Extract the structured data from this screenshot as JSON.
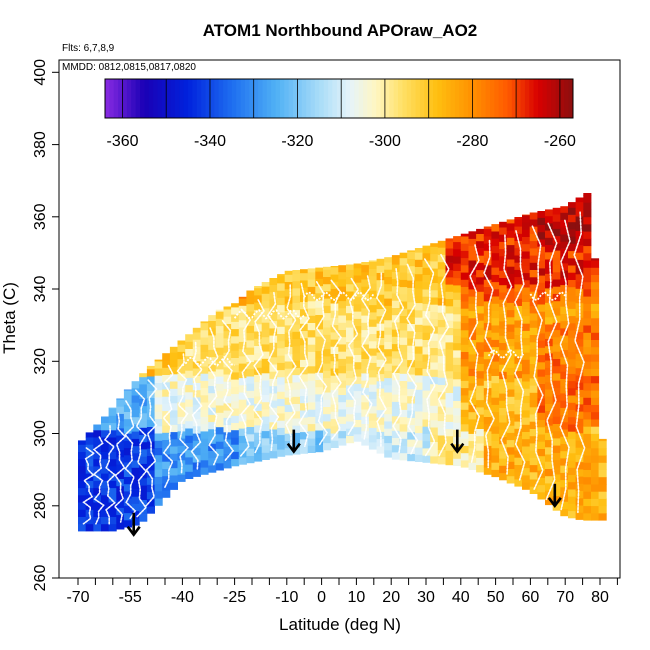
{
  "chart_data": {
    "type": "heatmap",
    "title": "ATOM1 Northbound APOraw_AO2",
    "annotations": {
      "flights": "Flts: 6,7,8,9",
      "dates": "MMDD: 0812,0815,0817,0820"
    },
    "xlabel": "Latitude (deg N)",
    "ylabel": "Theta (C)",
    "xlim": [
      -72,
      85
    ],
    "ylim": [
      260,
      405
    ],
    "x_ticks_labeled": [
      -70,
      -55,
      -40,
      -25,
      -10,
      0,
      10,
      20,
      30,
      40,
      50,
      60,
      70,
      80
    ],
    "x_ticks_minor": [
      -65,
      -60,
      -50,
      -45,
      -35,
      -30,
      -20,
      -15,
      -5,
      5,
      15,
      25,
      35,
      45,
      55,
      65,
      75,
      85
    ],
    "y_ticks": [
      260,
      280,
      300,
      320,
      340,
      360,
      380,
      400
    ],
    "colorbar": {
      "ticks": [
        -360,
        -340,
        -320,
        -300,
        -280,
        -260
      ],
      "range": [
        -364,
        -257
      ],
      "steps": [
        {
          "v": -364,
          "color": "#8a2be2"
        },
        {
          "v": -355,
          "color": "#1a00b5"
        },
        {
          "v": -345,
          "color": "#0022dd"
        },
        {
          "v": -335,
          "color": "#1e6ef0"
        },
        {
          "v": -325,
          "color": "#4fb0f5"
        },
        {
          "v": -315,
          "color": "#a8dcf8"
        },
        {
          "v": -308,
          "color": "#e6f4fa"
        },
        {
          "v": -302,
          "color": "#fff6c0"
        },
        {
          "v": -296,
          "color": "#ffe066"
        },
        {
          "v": -288,
          "color": "#ffbf10"
        },
        {
          "v": -280,
          "color": "#ff9000"
        },
        {
          "v": -272,
          "color": "#ff5a00"
        },
        {
          "v": -265,
          "color": "#d80000"
        },
        {
          "v": -257,
          "color": "#8c0f0f"
        }
      ]
    },
    "field_regions": [
      {
        "label": "southern deep blue",
        "lat": [
          -70,
          -55
        ],
        "theta": [
          273,
          300
        ],
        "value": -345
      },
      {
        "label": "southern blue",
        "lat": [
          -55,
          -20
        ],
        "theta": [
          285,
          300
        ],
        "value": -330
      },
      {
        "label": "tropical light",
        "lat": [
          -20,
          40
        ],
        "theta": [
          295,
          310
        ],
        "value": -306
      },
      {
        "label": "mid yellow",
        "lat": [
          -40,
          60
        ],
        "theta": [
          310,
          340
        ],
        "value": -296
      },
      {
        "label": "upper orange",
        "lat": [
          -35,
          75
        ],
        "theta": [
          330,
          355
        ],
        "value": -280
      },
      {
        "label": "northern red",
        "lat": [
          40,
          78
        ],
        "theta": [
          335,
          362
        ],
        "value": -265
      },
      {
        "label": "northern lower orange",
        "lat": [
          40,
          78
        ],
        "theta": [
          280,
          310
        ],
        "value": -285
      }
    ],
    "arrows": [
      {
        "lat": -54,
        "theta": 272
      },
      {
        "lat": -8,
        "theta": 295
      },
      {
        "lat": 39,
        "theta": 295
      },
      {
        "lat": 67,
        "theta": 280
      }
    ]
  }
}
